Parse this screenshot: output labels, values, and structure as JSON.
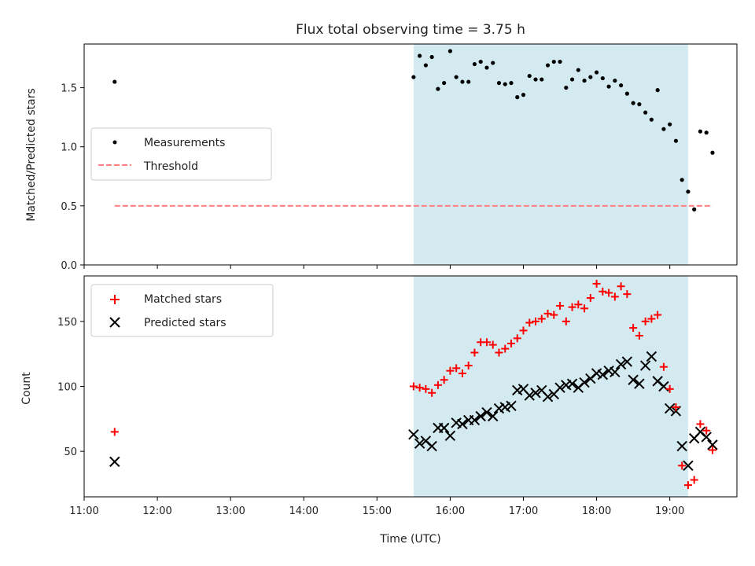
{
  "chart_data": [
    {
      "type": "scatter",
      "panel": "top",
      "title": "Flux total observing time = 3.75 h",
      "ylabel": "Matched/Predicted stars",
      "ylim": [
        0.0,
        1.87
      ],
      "yticks": [
        0.0,
        0.5,
        1.0,
        1.5
      ],
      "ytick_labels": [
        "0.0",
        "0.5",
        "1.0",
        "1.5"
      ],
      "xlim": [
        "11:00",
        "19:55"
      ],
      "shaded_interval": {
        "start": "15:30",
        "end": "19:15",
        "color": "#d3ebf0"
      },
      "legend": {
        "location": "center-left",
        "entries": [
          "Measurements",
          "Threshold"
        ]
      },
      "threshold": {
        "name": "Threshold",
        "value": 0.5,
        "x_start": "11:25",
        "x_end": "19:35",
        "color": "#ff7f7f",
        "style": "dashed"
      },
      "series": [
        {
          "name": "Measurements",
          "marker": "dot",
          "color": "#000000",
          "x": [
            "11:25",
            "15:30",
            "15:35",
            "15:40",
            "15:45",
            "15:50",
            "15:55",
            "16:00",
            "16:05",
            "16:10",
            "16:15",
            "16:20",
            "16:25",
            "16:30",
            "16:35",
            "16:40",
            "16:45",
            "16:50",
            "16:55",
            "17:00",
            "17:05",
            "17:10",
            "17:15",
            "17:20",
            "17:25",
            "17:30",
            "17:35",
            "17:40",
            "17:45",
            "17:50",
            "17:55",
            "18:00",
            "18:05",
            "18:10",
            "18:15",
            "18:20",
            "18:25",
            "18:30",
            "18:35",
            "18:40",
            "18:45",
            "18:50",
            "18:55",
            "19:00",
            "19:05",
            "19:10",
            "19:15",
            "19:20",
            "19:25",
            "19:30",
            "19:35"
          ],
          "y": [
            1.55,
            1.59,
            1.77,
            1.69,
            1.76,
            1.49,
            1.54,
            1.81,
            1.59,
            1.55,
            1.55,
            1.7,
            1.72,
            1.67,
            1.71,
            1.54,
            1.53,
            1.54,
            1.42,
            1.44,
            1.6,
            1.57,
            1.57,
            1.69,
            1.72,
            1.72,
            1.5,
            1.57,
            1.65,
            1.56,
            1.59,
            1.63,
            1.58,
            1.51,
            1.56,
            1.52,
            1.45,
            1.37,
            1.36,
            1.29,
            1.23,
            1.48,
            1.15,
            1.19,
            1.05,
            0.72,
            0.62,
            0.47,
            1.13,
            1.12,
            0.95
          ]
        }
      ]
    },
    {
      "type": "scatter",
      "panel": "bottom",
      "xlabel": "Time (UTC)",
      "ylabel": "Count",
      "ylim": [
        15,
        185
      ],
      "yticks": [
        50,
        100,
        150
      ],
      "ytick_labels": [
        "50",
        "100",
        "150"
      ],
      "xlim": [
        "11:00",
        "19:55"
      ],
      "xticks": [
        "11:00",
        "12:00",
        "13:00",
        "14:00",
        "15:00",
        "16:00",
        "17:00",
        "18:00",
        "19:00"
      ],
      "shaded_interval": {
        "start": "15:30",
        "end": "19:15",
        "color": "#d3ebf0"
      },
      "legend": {
        "location": "top-left",
        "entries": [
          "Matched stars",
          "Predicted stars"
        ]
      },
      "series": [
        {
          "name": "Matched stars",
          "marker": "plus",
          "color": "#ff0000",
          "x": [
            "11:25",
            "15:30",
            "15:35",
            "15:40",
            "15:45",
            "15:50",
            "15:55",
            "16:00",
            "16:05",
            "16:10",
            "16:15",
            "16:20",
            "16:25",
            "16:30",
            "16:35",
            "16:40",
            "16:45",
            "16:50",
            "16:55",
            "17:00",
            "17:05",
            "17:10",
            "17:15",
            "17:20",
            "17:25",
            "17:30",
            "17:35",
            "17:40",
            "17:45",
            "17:50",
            "17:55",
            "18:00",
            "18:05",
            "18:10",
            "18:15",
            "18:20",
            "18:25",
            "18:30",
            "18:35",
            "18:40",
            "18:45",
            "18:50",
            "18:55",
            "19:00",
            "19:05",
            "19:10",
            "19:15",
            "19:20",
            "19:25",
            "19:30",
            "19:35"
          ],
          "y": [
            65,
            100,
            99,
            98,
            95,
            101,
            105,
            112,
            114,
            110,
            116,
            126,
            134,
            134,
            132,
            126,
            129,
            133,
            137,
            143,
            149,
            150,
            152,
            156,
            155,
            162,
            150,
            161,
            163,
            160,
            168,
            179,
            173,
            172,
            169,
            177,
            171,
            145,
            139,
            150,
            152,
            155,
            115,
            98,
            84,
            39,
            24,
            28,
            71,
            66,
            51
          ]
        },
        {
          "name": "Predicted stars",
          "marker": "cross",
          "color": "#000000",
          "x": [
            "11:25",
            "15:30",
            "15:35",
            "15:40",
            "15:45",
            "15:50",
            "15:55",
            "16:00",
            "16:05",
            "16:10",
            "16:15",
            "16:20",
            "16:25",
            "16:30",
            "16:35",
            "16:40",
            "16:45",
            "16:50",
            "16:55",
            "17:00",
            "17:05",
            "17:10",
            "17:15",
            "17:20",
            "17:25",
            "17:30",
            "17:35",
            "17:40",
            "17:45",
            "17:50",
            "17:55",
            "18:00",
            "18:05",
            "18:10",
            "18:15",
            "18:20",
            "18:25",
            "18:30",
            "18:35",
            "18:40",
            "18:45",
            "18:50",
            "18:55",
            "19:00",
            "19:05",
            "19:10",
            "19:15",
            "19:20",
            "19:25",
            "19:30",
            "19:35"
          ],
          "y": [
            42,
            63,
            56,
            58,
            54,
            68,
            68,
            62,
            72,
            71,
            74,
            74,
            77,
            80,
            77,
            83,
            84,
            85,
            97,
            98,
            93,
            95,
            97,
            92,
            94,
            99,
            101,
            102,
            99,
            103,
            106,
            110,
            109,
            112,
            111,
            117,
            119,
            105,
            102,
            116,
            123,
            104,
            100,
            83,
            81,
            54,
            39,
            60,
            65,
            61,
            55
          ]
        }
      ]
    }
  ]
}
